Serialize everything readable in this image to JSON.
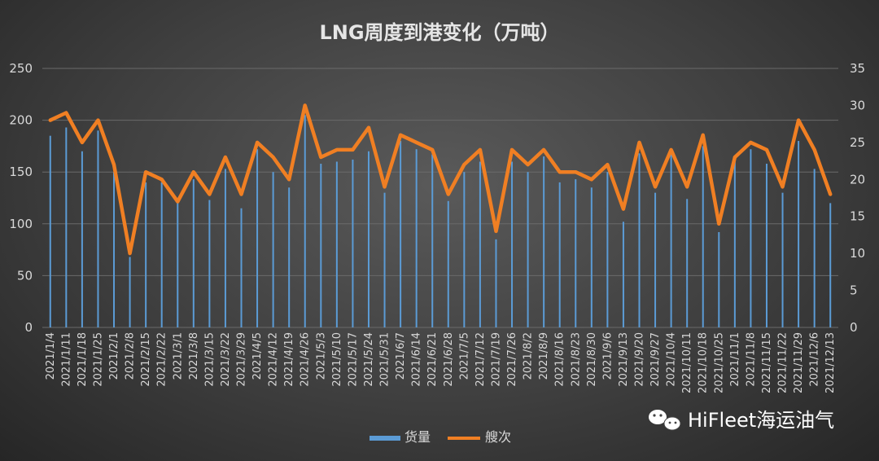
{
  "chart_data": {
    "type": "bar+line",
    "title": "LNG周度到港变化（万吨）",
    "categories": [
      "2021/1/4",
      "2021/1/11",
      "2021/1/18",
      "2021/1/25",
      "2021/2/1",
      "2021/2/8",
      "2021/2/15",
      "2021/2/22",
      "2021/3/1",
      "2021/3/8",
      "2021/3/15",
      "2021/3/22",
      "2021/3/29",
      "2021/4/5",
      "2021/4/12",
      "2021/4/19",
      "2021/4/26",
      "2021/5/3",
      "2021/5/10",
      "2021/5/17",
      "2021/5/24",
      "2021/5/31",
      "2021/6/7",
      "2021/6/14",
      "2021/6/21",
      "2021/6/28",
      "2021/7/5",
      "2021/7/12",
      "2021/7/19",
      "2021/7/26",
      "2021/8/2",
      "2021/8/9",
      "2021/8/16",
      "2021/8/23",
      "2021/8/30",
      "2021/9/6",
      "2021/9/13",
      "2021/9/20",
      "2021/9/27",
      "2021/10/4",
      "2021/10/11",
      "2021/10/18",
      "2021/10/25",
      "2021/11/1",
      "2021/11/8",
      "2021/11/15",
      "2021/11/22",
      "2021/11/29",
      "2021/12/6",
      "2021/12/13"
    ],
    "series": [
      {
        "name": "货量",
        "type": "bar",
        "axis": "left",
        "color": "#5b9bd5",
        "values": [
          185,
          193,
          170,
          190,
          150,
          68,
          140,
          140,
          120,
          143,
          123,
          153,
          115,
          172,
          150,
          135,
          205,
          158,
          160,
          162,
          170,
          130,
          180,
          172,
          167,
          122,
          150,
          160,
          85,
          160,
          150,
          165,
          140,
          143,
          135,
          150,
          102,
          168,
          130,
          168,
          124,
          175,
          92,
          160,
          172,
          158,
          130,
          180,
          153,
          120
        ]
      },
      {
        "name": "艘次",
        "type": "line",
        "axis": "right",
        "color": "#f07f23",
        "values": [
          28,
          29,
          25,
          28,
          22,
          10,
          21,
          20,
          17,
          21,
          18,
          23,
          18,
          25,
          23,
          20,
          30,
          23,
          24,
          24,
          27,
          19,
          26,
          25,
          24,
          18,
          22,
          24,
          13,
          24,
          22,
          24,
          21,
          21,
          20,
          22,
          16,
          25,
          19,
          24,
          19,
          26,
          14,
          23,
          25,
          24,
          19,
          28,
          24,
          18
        ]
      }
    ],
    "y_left": {
      "min": 0,
      "max": 250,
      "ticks": [
        0,
        50,
        100,
        150,
        200,
        250
      ]
    },
    "y_right": {
      "min": 0,
      "max": 35,
      "ticks": [
        0,
        5,
        10,
        15,
        20,
        25,
        30,
        35
      ]
    },
    "grid": true,
    "legend": "bottom-center"
  },
  "watermark": {
    "text": "HiFleet海运油气",
    "icon": "wechat-icon"
  }
}
